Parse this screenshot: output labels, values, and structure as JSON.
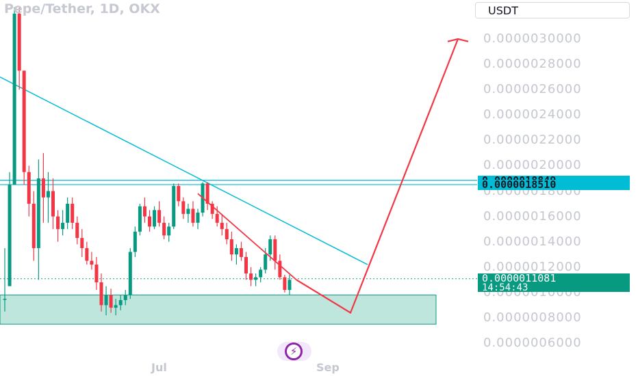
{
  "header": {
    "title": "Pepe/Tether, 1D, OKX",
    "currency": "USDT"
  },
  "colors": {
    "up": "#089981",
    "down": "#f23645",
    "trendline": "#00bcd4",
    "arrow": "#f23645",
    "zone_fill": "#bfe6dc",
    "zone_border": "#089981",
    "label_bg": "#00bcd4",
    "price_bg": "#089981",
    "bolt": "#8e24aa"
  },
  "icons": {
    "replay": "lightning-icon"
  },
  "chart_data": {
    "type": "candlestick",
    "title": "Pepe/Tether, 1D, OKX",
    "ylabel": "USDT",
    "ylim": [
      5e-07,
      3.3e-06
    ],
    "y_ticks": [
      "0.0000030000",
      "0.0000028000",
      "0.0000026000",
      "0.0000024000",
      "0.0000022000",
      "0.0000020000",
      "0.0000018000",
      "0.0000016000",
      "0.0000014000",
      "0.0000012000",
      "0.0000010000",
      "0.0000008000",
      "0.0000006000"
    ],
    "y_tick_values": [
      3e-06,
      2.8e-06,
      2.6e-06,
      2.4e-06,
      2.2e-06,
      2e-06,
      1.8e-06,
      1.6e-06,
      1.4e-06,
      1.2e-06,
      1e-06,
      8e-07,
      6e-07
    ],
    "x_ticks": [
      "Jul",
      "Sep"
    ],
    "current_price": "0.0000011081",
    "countdown": "14:54:43",
    "horizontal_levels": [
      {
        "label": "0.0000018849",
        "value": 1.8849e-06
      },
      {
        "label": "0.0000018510",
        "value": 1.851e-06
      }
    ],
    "support_zone": {
      "low": 7.5e-07,
      "high": 9.8e-07
    },
    "grid": false,
    "candles": [
      [
        0.95,
        1.35,
        0.85,
        0.95
      ],
      [
        1.05,
        1.95,
        1.05,
        1.85
      ],
      [
        1.85,
        3.25,
        1.85,
        3.2
      ],
      [
        3.2,
        3.25,
        2.6,
        2.75
      ],
      [
        2.75,
        2.75,
        1.85,
        1.95
      ],
      [
        1.95,
        2.0,
        1.6,
        1.7
      ],
      [
        1.7,
        1.8,
        1.25,
        1.35
      ],
      [
        1.35,
        2.05,
        1.1,
        1.9
      ],
      [
        1.9,
        2.1,
        1.55,
        1.75
      ],
      [
        1.75,
        1.95,
        1.55,
        1.8
      ],
      [
        1.8,
        1.9,
        1.5,
        1.6
      ],
      [
        1.6,
        1.65,
        1.4,
        1.5
      ],
      [
        1.5,
        1.65,
        1.45,
        1.55
      ],
      [
        1.55,
        1.75,
        1.5,
        1.7
      ],
      [
        1.7,
        1.75,
        1.5,
        1.55
      ],
      [
        1.55,
        1.6,
        1.38,
        1.43
      ],
      [
        1.43,
        1.5,
        1.28,
        1.35
      ],
      [
        1.35,
        1.4,
        1.22,
        1.25
      ],
      [
        1.25,
        1.32,
        1.18,
        1.22
      ],
      [
        1.22,
        1.28,
        1.02,
        1.08
      ],
      [
        1.08,
        1.15,
        0.85,
        0.9
      ],
      [
        0.9,
        1.05,
        0.82,
        0.98
      ],
      [
        0.98,
        1.03,
        0.84,
        0.88
      ],
      [
        0.88,
        0.95,
        0.82,
        0.9
      ],
      [
        0.9,
        0.98,
        0.86,
        0.94
      ],
      [
        0.94,
        1.02,
        0.9,
        0.98
      ],
      [
        0.98,
        1.35,
        0.95,
        1.32
      ],
      [
        1.32,
        1.52,
        1.28,
        1.48
      ],
      [
        1.48,
        1.7,
        1.45,
        1.68
      ],
      [
        1.68,
        1.75,
        1.55,
        1.6
      ],
      [
        1.6,
        1.65,
        1.48,
        1.52
      ],
      [
        1.52,
        1.68,
        1.5,
        1.65
      ],
      [
        1.65,
        1.72,
        1.52,
        1.55
      ],
      [
        1.55,
        1.6,
        1.42,
        1.45
      ],
      [
        1.45,
        1.55,
        1.4,
        1.52
      ],
      [
        1.52,
        1.86,
        1.5,
        1.84
      ],
      [
        1.84,
        1.86,
        1.68,
        1.72
      ],
      [
        1.72,
        1.75,
        1.58,
        1.62
      ],
      [
        1.62,
        1.7,
        1.55,
        1.66
      ],
      [
        1.66,
        1.72,
        1.52,
        1.55
      ],
      [
        1.55,
        1.66,
        1.5,
        1.63
      ],
      [
        1.63,
        1.87,
        1.6,
        1.86
      ],
      [
        1.86,
        1.87,
        1.65,
        1.7
      ],
      [
        1.7,
        1.72,
        1.58,
        1.62
      ],
      [
        1.62,
        1.68,
        1.52,
        1.55
      ],
      [
        1.55,
        1.62,
        1.45,
        1.5
      ],
      [
        1.5,
        1.55,
        1.38,
        1.42
      ],
      [
        1.42,
        1.48,
        1.25,
        1.3
      ],
      [
        1.3,
        1.38,
        1.22,
        1.35
      ],
      [
        1.35,
        1.4,
        1.25,
        1.28
      ],
      [
        1.28,
        1.32,
        1.1,
        1.15
      ],
      [
        1.15,
        1.2,
        1.05,
        1.1
      ],
      [
        1.1,
        1.15,
        1.05,
        1.12
      ],
      [
        1.12,
        1.2,
        1.08,
        1.18
      ],
      [
        1.18,
        1.35,
        1.15,
        1.3
      ],
      [
        1.3,
        1.45,
        1.25,
        1.42
      ],
      [
        1.42,
        1.45,
        1.18,
        1.25
      ],
      [
        1.25,
        1.3,
        1.1,
        1.12
      ],
      [
        1.12,
        1.14,
        1.0,
        1.02
      ],
      [
        1.02,
        1.14,
        0.98,
        1.1
      ]
    ]
  }
}
